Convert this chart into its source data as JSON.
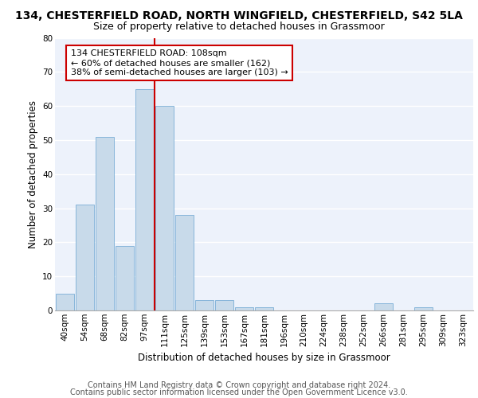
{
  "title1": "134, CHESTERFIELD ROAD, NORTH WINGFIELD, CHESTERFIELD, S42 5LA",
  "title2": "Size of property relative to detached houses in Grassmoor",
  "xlabel": "Distribution of detached houses by size in Grassmoor",
  "ylabel": "Number of detached properties",
  "bar_color": "#c8daea",
  "bar_edge_color": "#7aaed6",
  "bin_labels": [
    "40sqm",
    "54sqm",
    "68sqm",
    "82sqm",
    "97sqm",
    "111sqm",
    "125sqm",
    "139sqm",
    "153sqm",
    "167sqm",
    "181sqm",
    "196sqm",
    "210sqm",
    "224sqm",
    "238sqm",
    "252sqm",
    "266sqm",
    "281sqm",
    "295sqm",
    "309sqm",
    "323sqm"
  ],
  "bar_values": [
    5,
    31,
    51,
    19,
    65,
    60,
    28,
    3,
    3,
    1,
    1,
    0,
    0,
    0,
    0,
    0,
    2,
    0,
    1,
    0,
    0
  ],
  "vline_index": 5,
  "vline_color": "#cc0000",
  "annotation_line1": "134 CHESTERFIELD ROAD: 108sqm",
  "annotation_line2": "← 60% of detached houses are smaller (162)",
  "annotation_line3": "38% of semi-detached houses are larger (103) →",
  "annotation_box_color": "#ffffff",
  "annotation_box_edge": "#cc0000",
  "ylim": [
    0,
    80
  ],
  "yticks": [
    0,
    10,
    20,
    30,
    40,
    50,
    60,
    70,
    80
  ],
  "footer1": "Contains HM Land Registry data © Crown copyright and database right 2024.",
  "footer2": "Contains public sector information licensed under the Open Government Licence v3.0.",
  "background_color": "#edf2fb",
  "grid_color": "#ffffff",
  "title1_fontsize": 10,
  "title2_fontsize": 9,
  "axis_label_fontsize": 8.5,
  "tick_fontsize": 7.5,
  "annotation_fontsize": 8,
  "footer_fontsize": 7
}
